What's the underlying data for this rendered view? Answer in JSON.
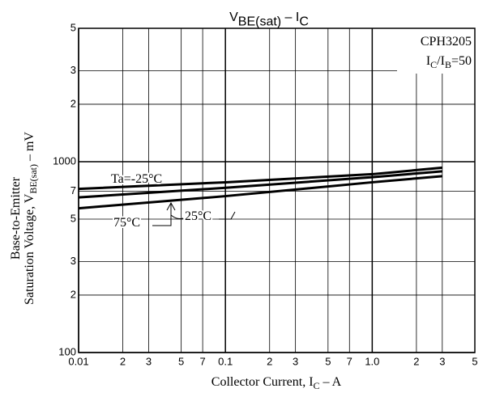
{
  "chart_data": {
    "type": "line",
    "title": [
      "V",
      "BE(sat)",
      "  –  I",
      "C"
    ],
    "x_label": [
      "Collector Current, I",
      "C",
      "  –  A"
    ],
    "y_label": [
      [
        "Base-to-Emitter"
      ],
      [
        "Saturation Voltage, V",
        "BE(sat)",
        "  –  mV"
      ]
    ],
    "annotations": [
      [
        "CPH3205"
      ],
      [
        "I",
        "C",
        "/I",
        "B",
        "=50"
      ]
    ],
    "x": [
      0.01,
      0.1,
      1,
      3
    ],
    "series": [
      {
        "name": "Ta=-25°C",
        "color": "#000000",
        "values": [
          720,
          780,
          860,
          930
        ]
      },
      {
        "name": "25°C",
        "color": "#000000",
        "values": [
          650,
          730,
          830,
          890
        ]
      },
      {
        "name": "75°C",
        "color": "#000000",
        "values": [
          570,
          660,
          780,
          840
        ]
      }
    ],
    "xlim": [
      0.01,
      5
    ],
    "ylim": [
      100,
      5000
    ],
    "log_x": true,
    "log_y": true,
    "grid": true,
    "xticks": [
      0.01,
      {
        "value": 0.02,
        "label": "2"
      },
      {
        "value": 0.03,
        "label": "3"
      },
      {
        "value": 0.05,
        "label": "5"
      },
      {
        "value": 0.07,
        "label": "7"
      },
      0.1,
      {
        "value": 0.2,
        "label": "2"
      },
      {
        "value": 0.3,
        "label": "3"
      },
      {
        "value": 0.5,
        "label": "5"
      },
      {
        "value": 0.7,
        "label": "7"
      },
      {
        "value": 1,
        "label": "1.0"
      },
      2,
      3,
      5
    ],
    "yticks": [
      100,
      {
        "value": 200,
        "label": "2"
      },
      {
        "value": 300,
        "label": "3"
      },
      {
        "value": 500,
        "label": "5"
      },
      {
        "value": 700,
        "label": "7"
      },
      1000,
      {
        "value": 2000,
        "label": "2"
      },
      {
        "value": 3000,
        "label": "3"
      },
      {
        "value": 5000,
        "label": "5"
      }
    ]
  }
}
